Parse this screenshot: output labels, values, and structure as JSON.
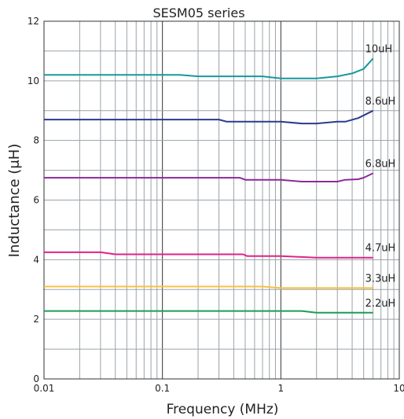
{
  "chart_data": {
    "type": "line",
    "title": "SESM05 series",
    "xlabel": "Frequency (MHz)",
    "ylabel": "Inductance (μH)",
    "x_scale": "log",
    "xlim": [
      0.01,
      10
    ],
    "ylim": [
      0,
      12
    ],
    "x_ticks": [
      0.01,
      0.1,
      1,
      10
    ],
    "x_tick_labels": [
      "0.01",
      "0.1",
      "1",
      "10"
    ],
    "y_ticks": [
      0,
      2,
      4,
      6,
      8,
      10,
      12
    ],
    "y_tick_labels": [
      "0",
      "2",
      "4",
      "6",
      "8",
      "10",
      "12"
    ],
    "grid": true,
    "series": [
      {
        "name": "10uH",
        "color": "#16999f",
        "points": [
          [
            0.01,
            10.2
          ],
          [
            0.14,
            10.2
          ],
          [
            0.2,
            10.15
          ],
          [
            0.7,
            10.15
          ],
          [
            1.0,
            10.08
          ],
          [
            2.0,
            10.08
          ],
          [
            3.0,
            10.15
          ],
          [
            4.0,
            10.25
          ],
          [
            5.0,
            10.4
          ],
          [
            6.0,
            10.75
          ]
        ]
      },
      {
        "name": "8.6uH",
        "color": "#2b3a8f",
        "points": [
          [
            0.01,
            8.7
          ],
          [
            0.3,
            8.7
          ],
          [
            0.35,
            8.63
          ],
          [
            1.0,
            8.63
          ],
          [
            1.5,
            8.57
          ],
          [
            2.0,
            8.57
          ],
          [
            3.0,
            8.63
          ],
          [
            3.5,
            8.63
          ],
          [
            4.5,
            8.75
          ],
          [
            6.0,
            9.0
          ]
        ]
      },
      {
        "name": "6.8uH",
        "color": "#8b2a9a",
        "points": [
          [
            0.01,
            6.75
          ],
          [
            0.45,
            6.75
          ],
          [
            0.5,
            6.68
          ],
          [
            1.0,
            6.68
          ],
          [
            1.5,
            6.62
          ],
          [
            3.0,
            6.62
          ],
          [
            3.5,
            6.68
          ],
          [
            4.5,
            6.7
          ],
          [
            5.0,
            6.75
          ],
          [
            6.0,
            6.9
          ]
        ]
      },
      {
        "name": "4.7uH",
        "color": "#e0228a",
        "points": [
          [
            0.01,
            4.25
          ],
          [
            0.03,
            4.25
          ],
          [
            0.04,
            4.18
          ],
          [
            0.48,
            4.18
          ],
          [
            0.52,
            4.12
          ],
          [
            1.0,
            4.12
          ],
          [
            2.0,
            4.07
          ],
          [
            6.0,
            4.07
          ]
        ]
      },
      {
        "name": "3.3uH",
        "color": "#f5c242",
        "points": [
          [
            0.01,
            3.1
          ],
          [
            0.7,
            3.1
          ],
          [
            1.0,
            3.05
          ],
          [
            6.0,
            3.05
          ]
        ]
      },
      {
        "name": "2.2uH",
        "color": "#1a9e55",
        "points": [
          [
            0.01,
            2.28
          ],
          [
            1.5,
            2.28
          ],
          [
            2.0,
            2.22
          ],
          [
            6.0,
            2.22
          ]
        ]
      }
    ],
    "series_labels": [
      "10uH",
      "8.6uH",
      "6.8uH",
      "4.7uH",
      "3.3uH",
      "2.2uH"
    ]
  }
}
